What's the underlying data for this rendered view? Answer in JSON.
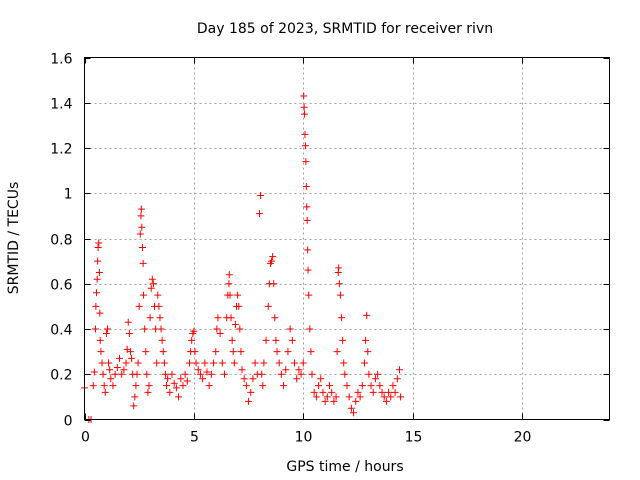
{
  "chart_data": {
    "type": "scatter",
    "title": "Day 185 of 2023, SRMTID for receiver rivn",
    "xlabel": "GPS time / hours",
    "ylabel": "SRMTID / TECUs",
    "xlim": [
      0,
      24
    ],
    "ylim": [
      0,
      1.6
    ],
    "xticks": [
      0,
      5,
      10,
      15,
      20
    ],
    "xtick_labels": [
      "0",
      "5",
      "10",
      "15",
      "20"
    ],
    "yticks": [
      0,
      0.2,
      0.4,
      0.6,
      0.8,
      1.0,
      1.2,
      1.4,
      1.6
    ],
    "ytick_labels": [
      "0",
      "0.2",
      "0.4",
      "0.6",
      "0.8",
      "1",
      "1.2",
      "1.4",
      "1.6"
    ],
    "grid": true,
    "marker": "+",
    "colors": {
      "series": "#ff0000",
      "grid": "#a0a0a0",
      "axis": "#000000"
    },
    "series": [
      {
        "name": "SRMTID",
        "points": [
          [
            0.0,
            0.14
          ],
          [
            0.2,
            0.0
          ],
          [
            0.3,
            0.0
          ],
          [
            0.4,
            0.15
          ],
          [
            0.45,
            0.21
          ],
          [
            0.5,
            0.4
          ],
          [
            0.52,
            0.5
          ],
          [
            0.55,
            0.56
          ],
          [
            0.58,
            0.62
          ],
          [
            0.6,
            0.7
          ],
          [
            0.62,
            0.76
          ],
          [
            0.65,
            0.78
          ],
          [
            0.68,
            0.65
          ],
          [
            0.7,
            0.47
          ],
          [
            0.72,
            0.35
          ],
          [
            0.75,
            0.3
          ],
          [
            0.8,
            0.25
          ],
          [
            0.85,
            0.2
          ],
          [
            0.9,
            0.15
          ],
          [
            0.95,
            0.12
          ],
          [
            1.0,
            0.38
          ],
          [
            1.05,
            0.4
          ],
          [
            1.1,
            0.25
          ],
          [
            1.15,
            0.22
          ],
          [
            1.2,
            0.18
          ],
          [
            1.3,
            0.15
          ],
          [
            1.4,
            0.2
          ],
          [
            1.5,
            0.23
          ],
          [
            1.6,
            0.27
          ],
          [
            1.7,
            0.2
          ],
          [
            1.8,
            0.22
          ],
          [
            1.9,
            0.25
          ],
          [
            1.95,
            0.31
          ],
          [
            2.0,
            0.43
          ],
          [
            2.05,
            0.38
          ],
          [
            2.1,
            0.3
          ],
          [
            2.15,
            0.27
          ],
          [
            2.2,
            0.2
          ],
          [
            2.25,
            0.06
          ],
          [
            2.3,
            0.1
          ],
          [
            2.35,
            0.15
          ],
          [
            2.4,
            0.2
          ],
          [
            2.45,
            0.25
          ],
          [
            2.5,
            0.5
          ],
          [
            2.55,
            0.82
          ],
          [
            2.58,
            0.9
          ],
          [
            2.6,
            0.93
          ],
          [
            2.62,
            0.85
          ],
          [
            2.65,
            0.76
          ],
          [
            2.68,
            0.69
          ],
          [
            2.7,
            0.55
          ],
          [
            2.75,
            0.4
          ],
          [
            2.8,
            0.3
          ],
          [
            2.85,
            0.2
          ],
          [
            2.9,
            0.12
          ],
          [
            2.95,
            0.15
          ],
          [
            3.0,
            0.45
          ],
          [
            3.05,
            0.58
          ],
          [
            3.1,
            0.62
          ],
          [
            3.15,
            0.6
          ],
          [
            3.2,
            0.5
          ],
          [
            3.25,
            0.4
          ],
          [
            3.3,
            0.25
          ],
          [
            3.35,
            0.55
          ],
          [
            3.4,
            0.5
          ],
          [
            3.45,
            0.45
          ],
          [
            3.5,
            0.4
          ],
          [
            3.55,
            0.35
          ],
          [
            3.6,
            0.3
          ],
          [
            3.65,
            0.25
          ],
          [
            3.7,
            0.2
          ],
          [
            3.75,
            0.15
          ],
          [
            3.8,
            0.18
          ],
          [
            3.9,
            0.12
          ],
          [
            4.0,
            0.2
          ],
          [
            4.1,
            0.16
          ],
          [
            4.2,
            0.14
          ],
          [
            4.3,
            0.1
          ],
          [
            4.4,
            0.18
          ],
          [
            4.5,
            0.15
          ],
          [
            4.6,
            0.2
          ],
          [
            4.7,
            0.17
          ],
          [
            4.8,
            0.25
          ],
          [
            4.85,
            0.3
          ],
          [
            4.9,
            0.35
          ],
          [
            4.95,
            0.38
          ],
          [
            5.0,
            0.39
          ],
          [
            5.05,
            0.3
          ],
          [
            5.1,
            0.25
          ],
          [
            5.2,
            0.22
          ],
          [
            5.3,
            0.2
          ],
          [
            5.4,
            0.18
          ],
          [
            5.5,
            0.25
          ],
          [
            5.6,
            0.21
          ],
          [
            5.7,
            0.15
          ],
          [
            5.8,
            0.2
          ],
          [
            5.9,
            0.25
          ],
          [
            6.0,
            0.3
          ],
          [
            6.05,
            0.4
          ],
          [
            6.1,
            0.45
          ],
          [
            6.2,
            0.38
          ],
          [
            6.3,
            0.25
          ],
          [
            6.4,
            0.2
          ],
          [
            6.5,
            0.45
          ],
          [
            6.55,
            0.55
          ],
          [
            6.6,
            0.6
          ],
          [
            6.62,
            0.64
          ],
          [
            6.65,
            0.55
          ],
          [
            6.7,
            0.45
          ],
          [
            6.75,
            0.35
          ],
          [
            6.8,
            0.3
          ],
          [
            6.85,
            0.25
          ],
          [
            6.9,
            0.42
          ],
          [
            6.95,
            0.5
          ],
          [
            7.0,
            0.55
          ],
          [
            7.05,
            0.5
          ],
          [
            7.1,
            0.4
          ],
          [
            7.15,
            0.3
          ],
          [
            7.2,
            0.22
          ],
          [
            7.3,
            0.18
          ],
          [
            7.4,
            0.15
          ],
          [
            7.5,
            0.08
          ],
          [
            7.6,
            0.12
          ],
          [
            7.7,
            0.18
          ],
          [
            7.8,
            0.25
          ],
          [
            7.9,
            0.2
          ],
          [
            8.0,
            0.91
          ],
          [
            8.05,
            0.99
          ],
          [
            8.1,
            0.2
          ],
          [
            8.15,
            0.15
          ],
          [
            8.2,
            0.25
          ],
          [
            8.3,
            0.35
          ],
          [
            8.4,
            0.5
          ],
          [
            8.45,
            0.6
          ],
          [
            8.5,
            0.69
          ],
          [
            8.55,
            0.7
          ],
          [
            8.6,
            0.72
          ],
          [
            8.65,
            0.6
          ],
          [
            8.7,
            0.45
          ],
          [
            8.75,
            0.35
          ],
          [
            8.8,
            0.3
          ],
          [
            8.9,
            0.25
          ],
          [
            9.0,
            0.2
          ],
          [
            9.1,
            0.15
          ],
          [
            9.2,
            0.22
          ],
          [
            9.3,
            0.3
          ],
          [
            9.4,
            0.4
          ],
          [
            9.5,
            0.35
          ],
          [
            9.6,
            0.25
          ],
          [
            9.7,
            0.18
          ],
          [
            9.8,
            0.22
          ],
          [
            9.9,
            0.2
          ],
          [
            10.0,
            0.25
          ],
          [
            10.02,
            1.43
          ],
          [
            10.04,
            1.38
          ],
          [
            10.06,
            1.35
          ],
          [
            10.08,
            1.26
          ],
          [
            10.1,
            1.21
          ],
          [
            10.12,
            1.14
          ],
          [
            10.14,
            1.03
          ],
          [
            10.16,
            0.94
          ],
          [
            10.18,
            0.88
          ],
          [
            10.2,
            0.75
          ],
          [
            10.22,
            0.66
          ],
          [
            10.25,
            0.55
          ],
          [
            10.3,
            0.4
          ],
          [
            10.35,
            0.3
          ],
          [
            10.4,
            0.2
          ],
          [
            10.5,
            0.12
          ],
          [
            10.6,
            0.1
          ],
          [
            10.7,
            0.15
          ],
          [
            10.8,
            0.18
          ],
          [
            10.9,
            0.12
          ],
          [
            11.0,
            0.08
          ],
          [
            11.1,
            0.1
          ],
          [
            11.2,
            0.15
          ],
          [
            11.3,
            0.12
          ],
          [
            11.4,
            0.08
          ],
          [
            11.5,
            0.1
          ],
          [
            11.55,
            0.3
          ],
          [
            11.6,
            0.65
          ],
          [
            11.62,
            0.67
          ],
          [
            11.65,
            0.6
          ],
          [
            11.7,
            0.55
          ],
          [
            11.75,
            0.45
          ],
          [
            11.8,
            0.35
          ],
          [
            11.85,
            0.25
          ],
          [
            11.9,
            0.2
          ],
          [
            12.0,
            0.15
          ],
          [
            12.1,
            0.1
          ],
          [
            12.2,
            0.05
          ],
          [
            12.3,
            0.03
          ],
          [
            12.4,
            0.08
          ],
          [
            12.5,
            0.12
          ],
          [
            12.6,
            0.1
          ],
          [
            12.7,
            0.15
          ],
          [
            12.8,
            0.25
          ],
          [
            12.85,
            0.35
          ],
          [
            12.9,
            0.46
          ],
          [
            12.95,
            0.3
          ],
          [
            13.0,
            0.2
          ],
          [
            13.1,
            0.15
          ],
          [
            13.2,
            0.12
          ],
          [
            13.3,
            0.18
          ],
          [
            13.4,
            0.2
          ],
          [
            13.5,
            0.15
          ],
          [
            13.6,
            0.12
          ],
          [
            13.7,
            0.1
          ],
          [
            13.8,
            0.08
          ],
          [
            13.9,
            0.12
          ],
          [
            14.0,
            0.1
          ],
          [
            14.1,
            0.15
          ],
          [
            14.2,
            0.12
          ],
          [
            14.3,
            0.18
          ],
          [
            14.4,
            0.22
          ],
          [
            14.45,
            0.1
          ]
        ]
      }
    ]
  }
}
